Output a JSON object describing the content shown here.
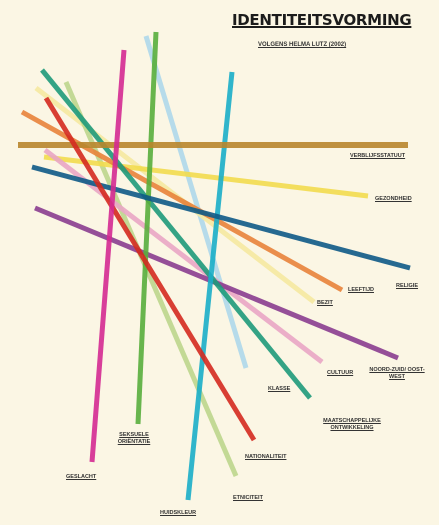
{
  "title": "IDENTITEITSVORMING",
  "subtitle": "VOLGENS HELMA LUTZ (2002)",
  "lines": [
    {
      "key": "verblijfsstatuut",
      "label": "VERBLIJFSSTATUUT",
      "color": "#b8862c"
    },
    {
      "key": "gezondheid",
      "label": "GEZONDHEID",
      "color": "#f2dc4e"
    },
    {
      "key": "religie",
      "label": "RELIGIE",
      "color": "#0e5a86"
    },
    {
      "key": "leeftijd",
      "label": "LEEFTIJD",
      "color": "#e8833a"
    },
    {
      "key": "bezit",
      "label": "BEZIT",
      "color": "#f5e9a0"
    },
    {
      "key": "cultuur",
      "label": "CULTUUR",
      "color": "#e9a6c4"
    },
    {
      "key": "noord_zuid",
      "label": "NOORD-ZUID/ OOST-WEST",
      "color": "#8a3d8f"
    },
    {
      "key": "klasse",
      "label": "KLASSE",
      "color": "#aed8ea"
    },
    {
      "key": "maatschappelijke_ontwikkeling",
      "label": "MAATSCHAPPELIJKE ONTWIKKELING",
      "color": "#1e9a7a"
    },
    {
      "key": "nationaliteit",
      "label": "NATIONALITEIT",
      "color": "#d42a1f"
    },
    {
      "key": "etniciteit",
      "label": "ETNICITEIT",
      "color": "#bcd68c"
    },
    {
      "key": "huidskleur",
      "label": "HUIDSKLEUR",
      "color": "#1aaec8"
    },
    {
      "key": "seksuele_orientatie",
      "label": "SEKSUELE ORIËNTATIE",
      "color": "#58ae3c"
    },
    {
      "key": "geslacht",
      "label": "GESLACHT",
      "color": "#d42a91"
    }
  ]
}
